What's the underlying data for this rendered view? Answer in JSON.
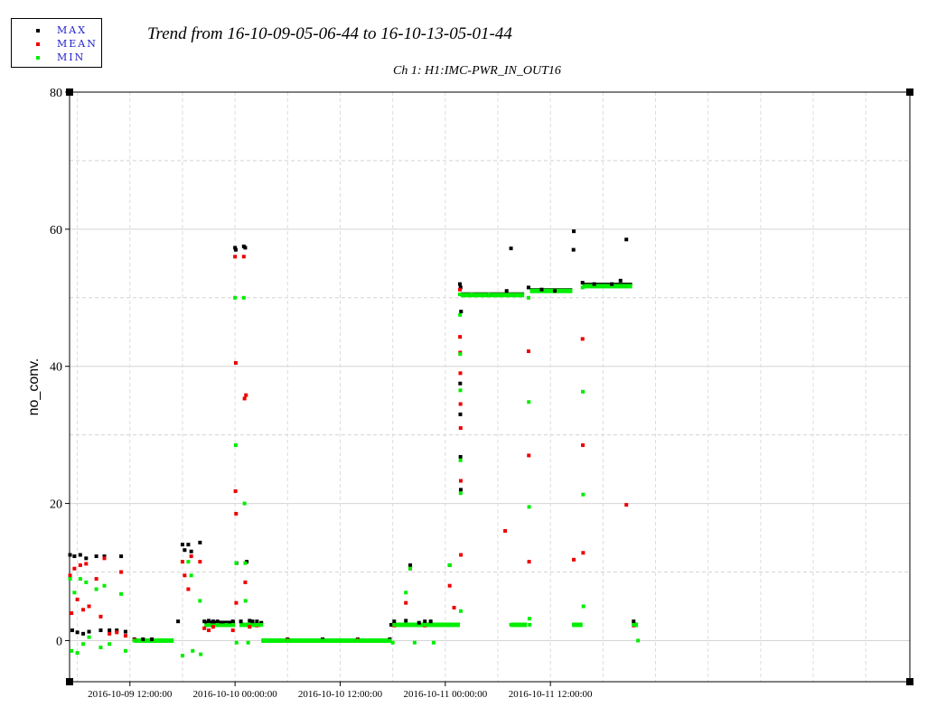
{
  "legend": [
    {
      "label": "MAX",
      "color": "#000000"
    },
    {
      "label": "MEAN",
      "color": "#ee0000"
    },
    {
      "label": "MIN",
      "color": "#00ee00"
    }
  ],
  "header": {
    "title": "Trend from 16-10-09-05-06-44 to 16-10-13-05-01-44",
    "subtitle": "Ch 1: H1:IMC-PWR_IN_OUT16"
  },
  "chart_data": {
    "type": "scatter",
    "title": "Trend from 16-10-09-05-06-44 to 16-10-13-05-01-44",
    "subtitle": "Ch 1: H1:IMC-PWR_IN_OUT16",
    "xlabel": "",
    "ylabel": "no_conv.",
    "xlim": [
      "2016-10-09 05:06:44",
      "2016-10-13 05:01:44"
    ],
    "ylim": [
      -6,
      80
    ],
    "yticks": [
      0,
      20,
      40,
      60,
      80
    ],
    "xticks": [
      "2016-10-09 12:00:00",
      "2016-10-10 00:00:00",
      "2016-10-10 12:00:00",
      "2016-10-11 00:00:00",
      "2016-10-11 12:00:00"
    ],
    "grid": true,
    "legend_position": "top-left",
    "series": [
      {
        "name": "MAX",
        "color": "#000000",
        "points": [
          [
            "2016-10-09 05:10",
            12.5
          ],
          [
            "2016-10-09 05:25",
            1.5
          ],
          [
            "2016-10-09 05:40",
            12.3
          ],
          [
            "2016-10-09 06:00",
            1.2
          ],
          [
            "2016-10-09 06:20",
            12.5
          ],
          [
            "2016-10-09 06:40",
            1.0
          ],
          [
            "2016-10-09 07:00",
            12.0
          ],
          [
            "2016-10-09 07:20",
            1.3
          ],
          [
            "2016-10-09 08:10",
            12.3
          ],
          [
            "2016-10-09 08:40",
            1.5
          ],
          [
            "2016-10-09 09:05",
            12.3
          ],
          [
            "2016-10-09 09:40",
            1.5
          ],
          [
            "2016-10-09 10:30",
            1.5
          ],
          [
            "2016-10-09 11:00",
            12.3
          ],
          [
            "2016-10-09 11:30",
            1.3
          ],
          [
            "2016-10-09 12:30",
            0.2
          ],
          [
            "2016-10-09 13:30",
            0.2
          ],
          [
            "2016-10-09 14:30",
            0.2
          ],
          [
            "2016-10-09 17:30",
            2.8
          ],
          [
            "2016-10-09 18:00",
            14.0
          ],
          [
            "2016-10-09 18:15",
            13.2
          ],
          [
            "2016-10-09 18:40",
            14.0
          ],
          [
            "2016-10-09 19:00",
            13.0
          ],
          [
            "2016-10-09 20:00",
            14.3
          ],
          [
            "2016-10-09 20:30",
            2.8
          ],
          [
            "2016-10-09 21:00",
            2.9
          ],
          [
            "2016-10-09 21:30",
            2.8
          ],
          [
            "2016-10-09 22:00",
            2.8
          ],
          [
            "2016-10-09 23:00",
            2.6
          ],
          [
            "2016-10-09 23:45",
            2.8
          ],
          [
            "2016-10-10 00:00",
            57.3
          ],
          [
            "2016-10-10 00:05",
            57.0
          ],
          [
            "2016-10-10 00:10",
            11.3
          ],
          [
            "2016-10-10 00:40",
            2.8
          ],
          [
            "2016-10-10 01:00",
            57.5
          ],
          [
            "2016-10-10 01:10",
            57.3
          ],
          [
            "2016-10-10 01:20",
            11.5
          ],
          [
            "2016-10-10 01:40",
            2.9
          ],
          [
            "2016-10-10 02:00",
            2.8
          ],
          [
            "2016-10-10 02:30",
            2.8
          ],
          [
            "2016-10-10 03:00",
            2.6
          ],
          [
            "2016-10-10 06:00",
            0.2
          ],
          [
            "2016-10-10 10:00",
            0.2
          ],
          [
            "2016-10-10 14:00",
            0.2
          ],
          [
            "2016-10-10 17:40",
            0.2
          ],
          [
            "2016-10-10 17:50",
            2.3
          ],
          [
            "2016-10-10 18:10",
            2.8
          ],
          [
            "2016-10-10 19:30",
            2.9
          ],
          [
            "2016-10-10 20:00",
            11.0
          ],
          [
            "2016-10-10 21:00",
            2.6
          ],
          [
            "2016-10-10 21:40",
            2.8
          ],
          [
            "2016-10-10 22:20",
            2.8
          ],
          [
            "2016-10-11 00:30",
            11.0
          ],
          [
            "2016-10-11 01:40",
            52.0
          ],
          [
            "2016-10-11 01:45",
            51.5
          ],
          [
            "2016-10-11 01:42",
            37.5
          ],
          [
            "2016-10-11 01:43",
            33.0
          ],
          [
            "2016-10-11 01:44",
            26.8
          ],
          [
            "2016-10-11 01:46",
            22.0
          ],
          [
            "2016-10-11 01:48",
            48.0
          ],
          [
            "2016-10-11 03:00",
            50.5
          ],
          [
            "2016-10-11 05:00",
            50.5
          ],
          [
            "2016-10-11 07:00",
            51.0
          ],
          [
            "2016-10-11 07:30",
            57.2
          ],
          [
            "2016-10-11 09:30",
            51.5
          ],
          [
            "2016-10-11 11:00",
            51.2
          ],
          [
            "2016-10-11 12:30",
            51.0
          ],
          [
            "2016-10-11 14:40",
            59.7
          ],
          [
            "2016-10-11 14:38",
            57.0
          ],
          [
            "2016-10-11 15:40",
            52.2
          ],
          [
            "2016-10-11 17:00",
            52.0
          ],
          [
            "2016-10-11 19:00",
            52.0
          ],
          [
            "2016-10-11 20:00",
            52.5
          ],
          [
            "2016-10-11 20:40",
            58.5
          ],
          [
            "2016-10-11 21:30",
            2.8
          ]
        ]
      },
      {
        "name": "MEAN",
        "color": "#ee0000",
        "points": [
          [
            "2016-10-09 05:10",
            9.5
          ],
          [
            "2016-10-09 05:20",
            4.0
          ],
          [
            "2016-10-09 05:40",
            10.5
          ],
          [
            "2016-10-09 06:00",
            6.0
          ],
          [
            "2016-10-09 06:20",
            11.0
          ],
          [
            "2016-10-09 06:40",
            4.5
          ],
          [
            "2016-10-09 07:00",
            11.2
          ],
          [
            "2016-10-09 07:20",
            5.0
          ],
          [
            "2016-10-09 08:10",
            9.0
          ],
          [
            "2016-10-09 08:40",
            3.5
          ],
          [
            "2016-10-09 09:05",
            12.0
          ],
          [
            "2016-10-09 09:40",
            1.0
          ],
          [
            "2016-10-09 10:30",
            1.2
          ],
          [
            "2016-10-09 11:00",
            10.0
          ],
          [
            "2016-10-09 11:30",
            0.7
          ],
          [
            "2016-10-09 12:30",
            0.1
          ],
          [
            "2016-10-09 18:00",
            11.5
          ],
          [
            "2016-10-09 18:15",
            9.5
          ],
          [
            "2016-10-09 18:40",
            7.5
          ],
          [
            "2016-10-09 19:00",
            12.3
          ],
          [
            "2016-10-09 20:00",
            11.5
          ],
          [
            "2016-10-09 20:30",
            1.8
          ],
          [
            "2016-10-09 21:00",
            1.5
          ],
          [
            "2016-10-09 21:30",
            2.0
          ],
          [
            "2016-10-09 23:45",
            1.5
          ],
          [
            "2016-10-10 00:00",
            56.0
          ],
          [
            "2016-10-10 00:05",
            40.5
          ],
          [
            "2016-10-10 00:03",
            21.8
          ],
          [
            "2016-10-10 00:07",
            18.5
          ],
          [
            "2016-10-10 00:08",
            5.5
          ],
          [
            "2016-10-10 01:00",
            56.0
          ],
          [
            "2016-10-10 01:05",
            35.3
          ],
          [
            "2016-10-10 01:15",
            35.8
          ],
          [
            "2016-10-10 01:10",
            8.5
          ],
          [
            "2016-10-10 01:40",
            2.0
          ],
          [
            "2016-10-10 02:30",
            2.2
          ],
          [
            "2016-10-10 06:00",
            0.1
          ],
          [
            "2016-10-10 14:00",
            0.1
          ],
          [
            "2016-10-10 18:10",
            2.2
          ],
          [
            "2016-10-10 19:30",
            5.5
          ],
          [
            "2016-10-10 20:00",
            10.5
          ],
          [
            "2016-10-10 21:40",
            2.2
          ],
          [
            "2016-10-11 00:30",
            8.0
          ],
          [
            "2016-10-11 01:00",
            4.8
          ],
          [
            "2016-10-11 01:40",
            51.2
          ],
          [
            "2016-10-11 01:41",
            44.3
          ],
          [
            "2016-10-11 01:42",
            42.0
          ],
          [
            "2016-10-11 01:43",
            39.0
          ],
          [
            "2016-10-11 01:44",
            34.5
          ],
          [
            "2016-10-11 01:45",
            31.0
          ],
          [
            "2016-10-11 01:46",
            23.3
          ],
          [
            "2016-10-11 01:47",
            12.5
          ],
          [
            "2016-10-11 03:00",
            50.5
          ],
          [
            "2016-10-11 06:50",
            16.0
          ],
          [
            "2016-10-11 09:30",
            42.2
          ],
          [
            "2016-10-11 09:32",
            27.0
          ],
          [
            "2016-10-11 09:34",
            11.5
          ],
          [
            "2016-10-11 14:40",
            11.8
          ],
          [
            "2016-10-11 15:40",
            44.0
          ],
          [
            "2016-10-11 15:42",
            28.5
          ],
          [
            "2016-10-11 15:44",
            12.8
          ],
          [
            "2016-10-11 20:40",
            19.8
          ],
          [
            "2016-10-11 21:30",
            2.2
          ]
        ]
      },
      {
        "name": "MIN",
        "color": "#00ee00",
        "points": [
          [
            "2016-10-09 05:10",
            9.0
          ],
          [
            "2016-10-09 05:20",
            -1.5
          ],
          [
            "2016-10-09 05:40",
            7.0
          ],
          [
            "2016-10-09 06:00",
            -1.8
          ],
          [
            "2016-10-09 06:20",
            9.0
          ],
          [
            "2016-10-09 06:40",
            -0.5
          ],
          [
            "2016-10-09 07:00",
            8.5
          ],
          [
            "2016-10-09 07:20",
            0.5
          ],
          [
            "2016-10-09 08:10",
            7.5
          ],
          [
            "2016-10-09 08:40",
            -1.0
          ],
          [
            "2016-10-09 09:05",
            8.0
          ],
          [
            "2016-10-09 09:40",
            -0.5
          ],
          [
            "2016-10-09 11:00",
            6.8
          ],
          [
            "2016-10-09 11:30",
            -1.5
          ],
          [
            "2016-10-09 12:30",
            0.0
          ],
          [
            "2016-10-09 15:00",
            0.0
          ],
          [
            "2016-10-09 18:00",
            -2.2
          ],
          [
            "2016-10-09 18:40",
            11.5
          ],
          [
            "2016-10-09 19:00",
            9.5
          ],
          [
            "2016-10-09 19:10",
            -1.5
          ],
          [
            "2016-10-09 20:00",
            5.8
          ],
          [
            "2016-10-09 20:05",
            -2.0
          ],
          [
            "2016-10-09 21:00",
            2.3
          ],
          [
            "2016-10-09 22:00",
            2.3
          ],
          [
            "2016-10-09 23:00",
            2.3
          ],
          [
            "2016-10-09 23:45",
            2.3
          ],
          [
            "2016-10-10 00:00",
            50.0
          ],
          [
            "2016-10-10 00:05",
            28.5
          ],
          [
            "2016-10-10 00:08",
            11.3
          ],
          [
            "2016-10-10 00:10",
            -0.3
          ],
          [
            "2016-10-10 01:00",
            50.0
          ],
          [
            "2016-10-10 01:05",
            20.0
          ],
          [
            "2016-10-10 01:10",
            11.3
          ],
          [
            "2016-10-10 01:12",
            5.8
          ],
          [
            "2016-10-10 01:30",
            -0.3
          ],
          [
            "2016-10-10 02:30",
            2.3
          ],
          [
            "2016-10-10 03:00",
            2.3
          ],
          [
            "2016-10-10 06:00",
            0.0
          ],
          [
            "2016-10-10 10:00",
            0.0
          ],
          [
            "2016-10-10 14:00",
            0.0
          ],
          [
            "2016-10-10 17:40",
            0.0
          ],
          [
            "2016-10-10 18:00",
            -0.3
          ],
          [
            "2016-10-10 18:10",
            2.3
          ],
          [
            "2016-10-10 19:30",
            7.0
          ],
          [
            "2016-10-10 20:00",
            10.5
          ],
          [
            "2016-10-10 20:30",
            -0.3
          ],
          [
            "2016-10-10 21:40",
            2.3
          ],
          [
            "2016-10-10 22:40",
            -0.3
          ],
          [
            "2016-10-11 00:30",
            11.0
          ],
          [
            "2016-10-11 01:00",
            2.3
          ],
          [
            "2016-10-11 01:40",
            50.5
          ],
          [
            "2016-10-11 01:41",
            47.5
          ],
          [
            "2016-10-11 01:42",
            41.8
          ],
          [
            "2016-10-11 01:43",
            36.5
          ],
          [
            "2016-10-11 01:44",
            26.3
          ],
          [
            "2016-10-11 01:45",
            21.5
          ],
          [
            "2016-10-11 01:46",
            4.3
          ],
          [
            "2016-10-11 03:00",
            50.5
          ],
          [
            "2016-10-11 05:00",
            50.5
          ],
          [
            "2016-10-11 07:30",
            2.3
          ],
          [
            "2016-10-11 09:30",
            50.0
          ],
          [
            "2016-10-11 09:32",
            34.8
          ],
          [
            "2016-10-11 09:34",
            19.5
          ],
          [
            "2016-10-11 09:36",
            3.2
          ],
          [
            "2016-10-11 09:38",
            2.3
          ],
          [
            "2016-10-11 12:00",
            51.0
          ],
          [
            "2016-10-11 14:40",
            2.3
          ],
          [
            "2016-10-11 15:40",
            51.5
          ],
          [
            "2016-10-11 15:42",
            36.3
          ],
          [
            "2016-10-11 15:44",
            21.3
          ],
          [
            "2016-10-11 15:46",
            5.0
          ],
          [
            "2016-10-11 18:00",
            51.7
          ],
          [
            "2016-10-11 21:30",
            2.3
          ],
          [
            "2016-10-11 22:00",
            0.0
          ]
        ]
      }
    ],
    "segments": [
      {
        "series": "MIN",
        "from": "2016-10-09 12:30",
        "to": "2016-10-09 17:00",
        "y": 0.0
      },
      {
        "series": "MIN",
        "from": "2016-10-09 20:30",
        "to": "2016-10-10 00:00",
        "y": 2.3
      },
      {
        "series": "MAX",
        "from": "2016-10-09 20:30",
        "to": "2016-10-10 00:00",
        "y": 2.7
      },
      {
        "series": "MIN",
        "from": "2016-10-10 00:30",
        "to": "2016-10-10 03:00",
        "y": 2.3
      },
      {
        "series": "MIN",
        "from": "2016-10-10 03:00",
        "to": "2016-10-10 17:50",
        "y": 0.0
      },
      {
        "series": "MIN",
        "from": "2016-10-10 17:50",
        "to": "2016-10-11 01:40",
        "y": 2.3
      },
      {
        "series": "MAX",
        "from": "2016-10-11 01:45",
        "to": "2016-10-11 09:00",
        "y": 50.6
      },
      {
        "series": "MIN",
        "from": "2016-10-11 01:45",
        "to": "2016-10-11 09:00",
        "y": 50.4
      },
      {
        "series": "MIN",
        "from": "2016-10-11 07:30",
        "to": "2016-10-11 09:20",
        "y": 2.3
      },
      {
        "series": "MAX",
        "from": "2016-10-11 09:40",
        "to": "2016-10-11 14:30",
        "y": 51.2
      },
      {
        "series": "MIN",
        "from": "2016-10-11 09:40",
        "to": "2016-10-11 14:30",
        "y": 51.0
      },
      {
        "series": "MIN",
        "from": "2016-10-11 14:30",
        "to": "2016-10-11 15:40",
        "y": 2.3
      },
      {
        "series": "MAX",
        "from": "2016-10-11 15:40",
        "to": "2016-10-11 21:20",
        "y": 52.0
      },
      {
        "series": "MIN",
        "from": "2016-10-11 15:40",
        "to": "2016-10-11 21:20",
        "y": 51.7
      },
      {
        "series": "MIN",
        "from": "2016-10-11 21:20",
        "to": "2016-10-11 22:00",
        "y": 2.3
      }
    ]
  }
}
